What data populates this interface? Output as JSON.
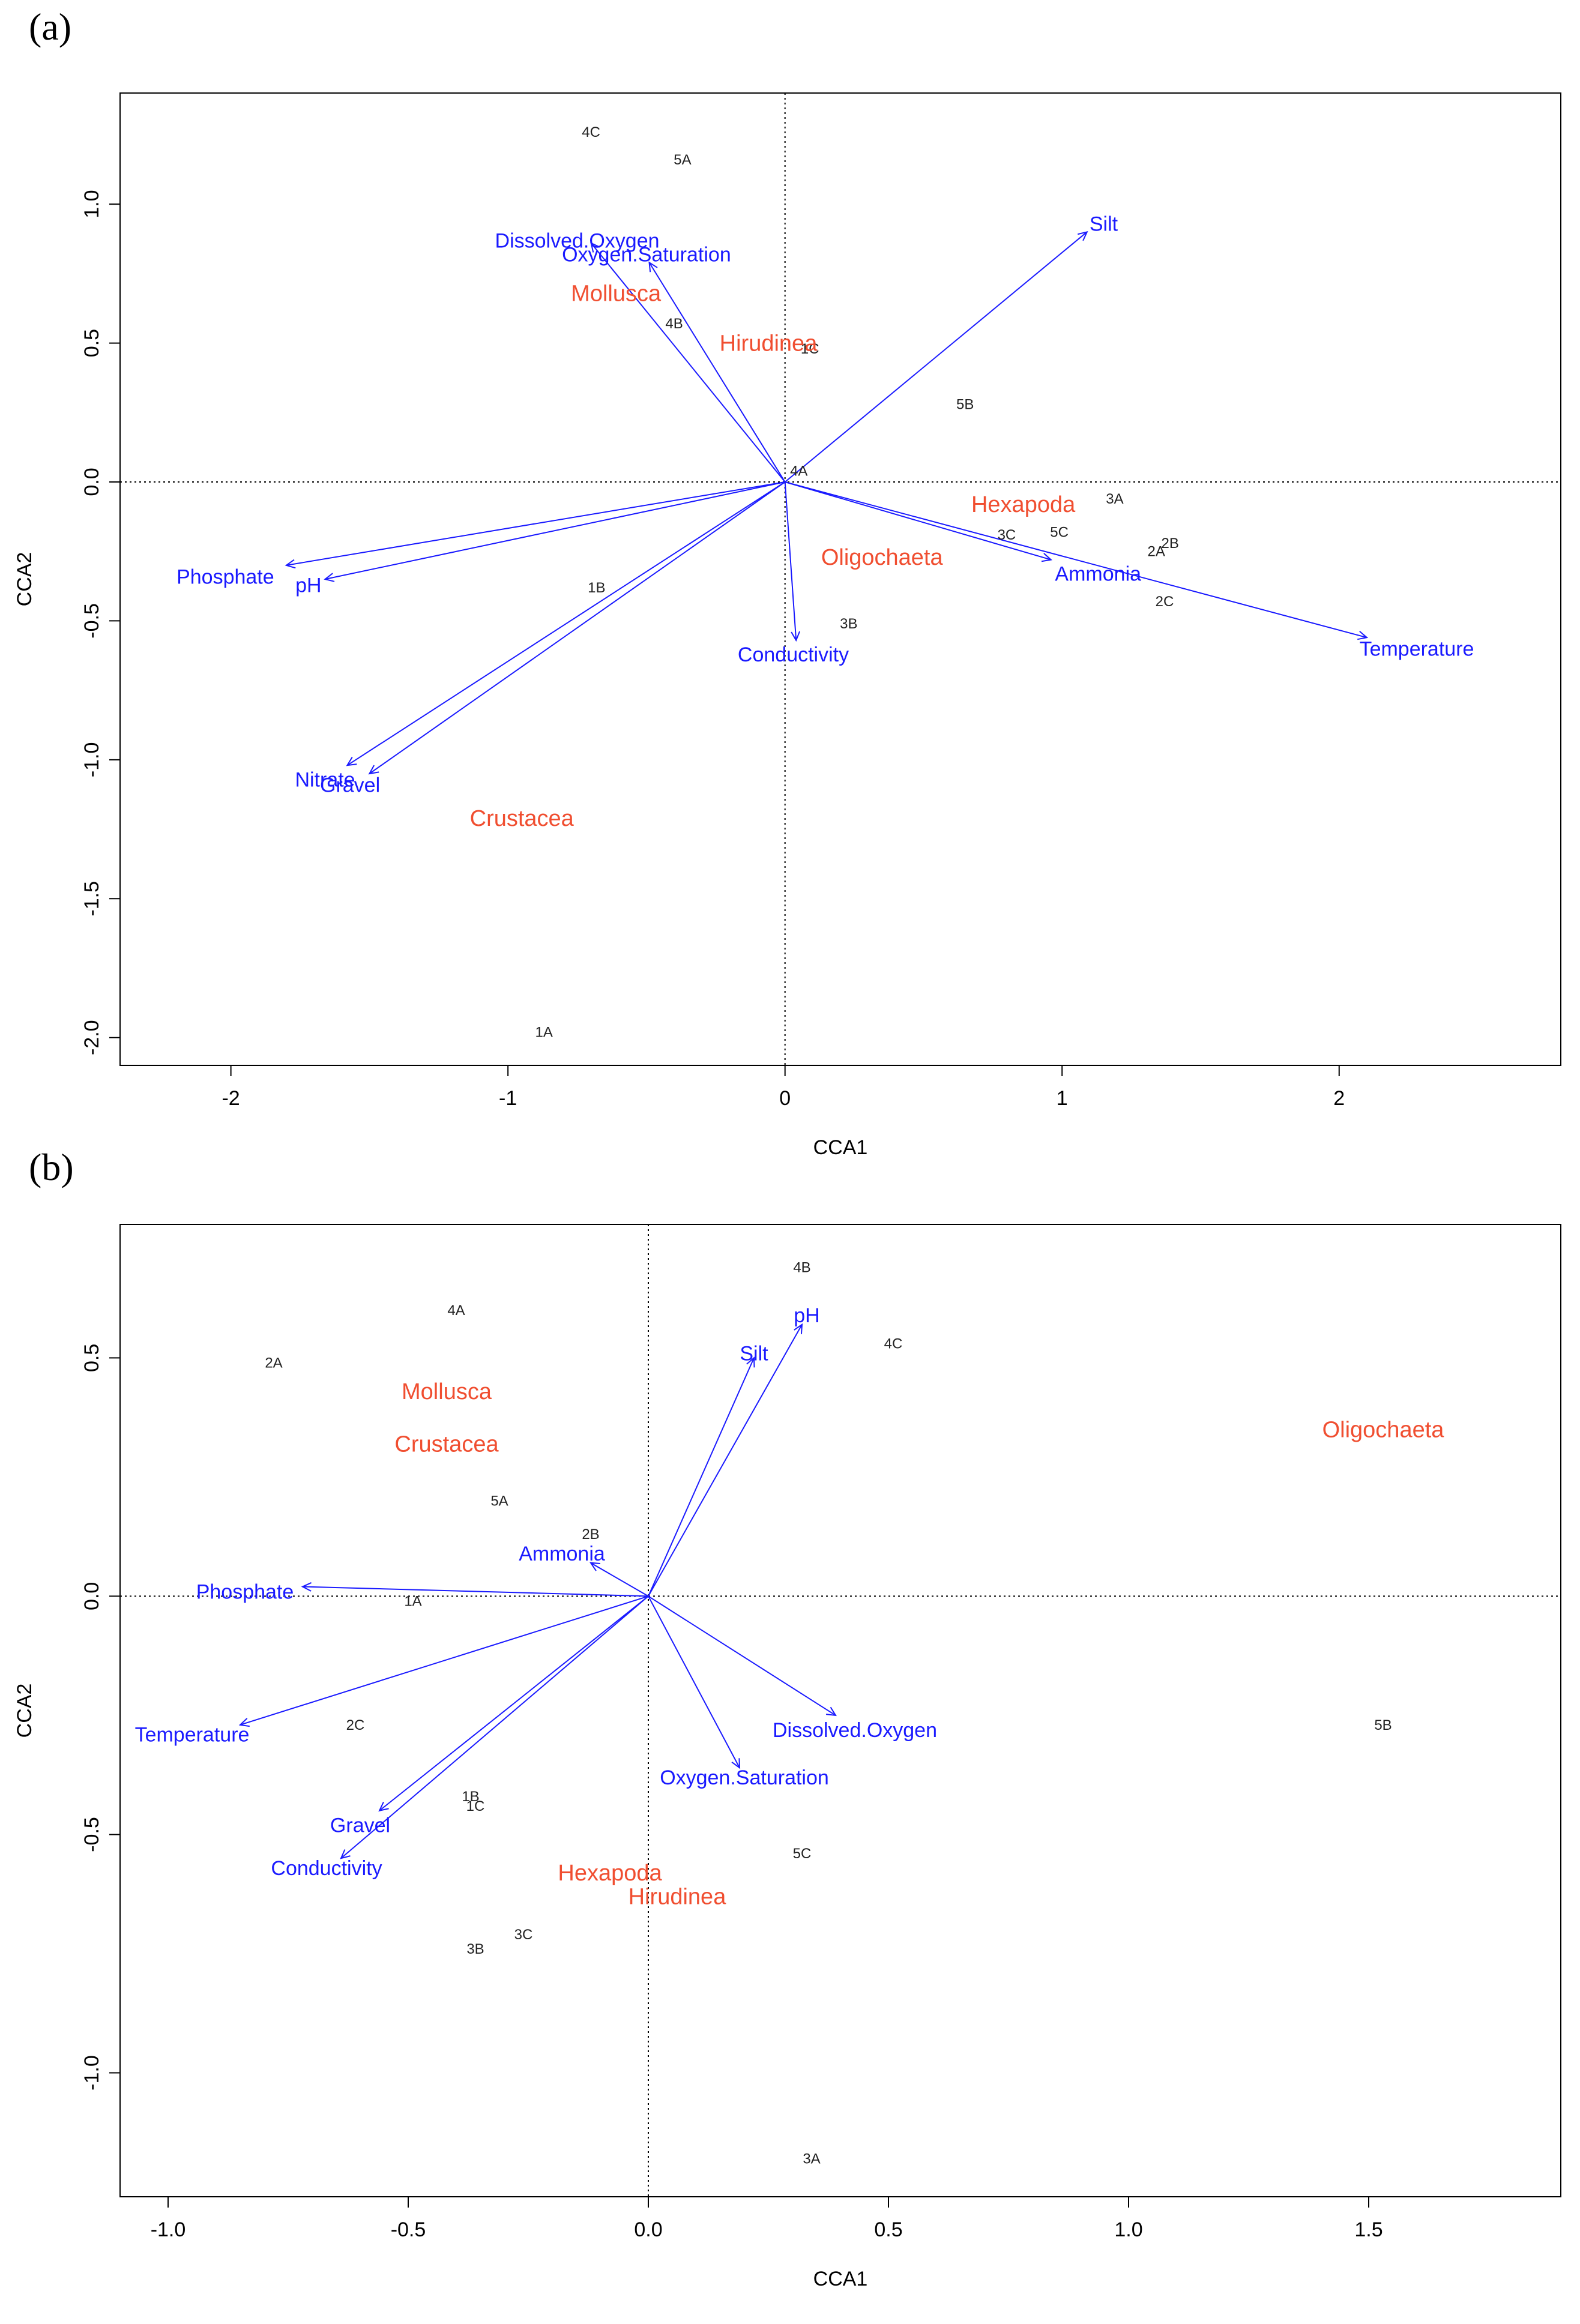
{
  "chart_data": [
    {
      "type": "scatter",
      "panel_label": "(a)",
      "xlabel": "CCA1",
      "ylabel": "CCA2",
      "xlim": [
        -2.4,
        2.8
      ],
      "ylim": [
        -2.1,
        1.4
      ],
      "xticks": [
        -2,
        -1,
        0,
        1,
        2
      ],
      "xtick_labels": [
        "-2",
        "-1",
        "0",
        "1",
        "2"
      ],
      "yticks": [
        -2.0,
        -1.5,
        -1.0,
        -0.5,
        0.0,
        0.5,
        1.0
      ],
      "ytick_labels": [
        "-2.0",
        "-1.5",
        "-1.0",
        "-0.5",
        "0.0",
        "0.5",
        "1.0"
      ],
      "sites": [
        {
          "label": "4C",
          "x": -0.7,
          "y": 1.26
        },
        {
          "label": "5A",
          "x": -0.37,
          "y": 1.16
        },
        {
          "label": "4B",
          "x": -0.4,
          "y": 0.57
        },
        {
          "label": "1C",
          "x": 0.09,
          "y": 0.48
        },
        {
          "label": "5B",
          "x": 0.65,
          "y": 0.28
        },
        {
          "label": "4A",
          "x": 0.05,
          "y": 0.04
        },
        {
          "label": "3A",
          "x": 1.19,
          "y": -0.06
        },
        {
          "label": "5C",
          "x": 0.99,
          "y": -0.18
        },
        {
          "label": "3C",
          "x": 0.8,
          "y": -0.19
        },
        {
          "label": "2B",
          "x": 1.39,
          "y": -0.22
        },
        {
          "label": "2A",
          "x": 1.34,
          "y": -0.25
        },
        {
          "label": "2C",
          "x": 1.37,
          "y": -0.43
        },
        {
          "label": "1B",
          "x": -0.68,
          "y": -0.38
        },
        {
          "label": "3B",
          "x": 0.23,
          "y": -0.51
        },
        {
          "label": "1A",
          "x": -0.87,
          "y": -1.98
        }
      ],
      "env_vectors": [
        {
          "name": "Silt",
          "x": 1.09,
          "y": 0.9,
          "lx": 1.15,
          "ly": 0.93
        },
        {
          "name": "Dissolved.Oxygen",
          "x": -0.7,
          "y": 0.86,
          "lx": -0.75,
          "ly": 0.87
        },
        {
          "name": "Oxygen.Saturation",
          "x": -0.49,
          "y": 0.79,
          "lx": -0.5,
          "ly": 0.82
        },
        {
          "name": "Phosphate",
          "x": -1.8,
          "y": -0.3,
          "lx": -2.02,
          "ly": -0.34
        },
        {
          "name": "pH",
          "x": -1.66,
          "y": -0.35,
          "lx": -1.72,
          "ly": -0.37
        },
        {
          "name": "Nitrate",
          "x": -1.58,
          "y": -1.02,
          "lx": -1.66,
          "ly": -1.07
        },
        {
          "name": "Gravel",
          "x": -1.5,
          "y": -1.05,
          "lx": -1.57,
          "ly": -1.09
        },
        {
          "name": "Conductivity",
          "x": 0.04,
          "y": -0.57,
          "lx": 0.03,
          "ly": -0.62
        },
        {
          "name": "Ammonia",
          "x": 0.96,
          "y": -0.28,
          "lx": 1.13,
          "ly": -0.33
        },
        {
          "name": "Temperature",
          "x": 2.1,
          "y": -0.56,
          "lx": 2.28,
          "ly": -0.6
        }
      ],
      "taxa": [
        {
          "name": "Mollusca",
          "x": -0.61,
          "y": 0.68
        },
        {
          "name": "Hirudinea",
          "x": -0.06,
          "y": 0.5
        },
        {
          "name": "Hexapoda",
          "x": 0.86,
          "y": -0.08
        },
        {
          "name": "Oligochaeta",
          "x": 0.35,
          "y": -0.27
        },
        {
          "name": "Crustacea",
          "x": -0.95,
          "y": -1.21
        }
      ]
    },
    {
      "type": "scatter",
      "panel_label": "(b)",
      "xlabel": "CCA1",
      "ylabel": "CCA2",
      "xlim": [
        -1.1,
        1.9
      ],
      "ylim": [
        -1.26,
        0.78
      ],
      "xticks": [
        -1.0,
        -0.5,
        0.0,
        0.5,
        1.0,
        1.5
      ],
      "xtick_labels": [
        "-1.0",
        "-0.5",
        "0.0",
        "0.5",
        "1.0",
        "1.5"
      ],
      "yticks": [
        -1.0,
        -0.5,
        0.0,
        0.5
      ],
      "ytick_labels": [
        "-1.0",
        "-0.5",
        "0.0",
        "0.5"
      ],
      "sites": [
        {
          "label": "4B",
          "x": 0.32,
          "y": 0.69
        },
        {
          "label": "4A",
          "x": -0.4,
          "y": 0.6
        },
        {
          "label": "4C",
          "x": 0.51,
          "y": 0.53
        },
        {
          "label": "2A",
          "x": -0.78,
          "y": 0.49
        },
        {
          "label": "5A",
          "x": -0.31,
          "y": 0.2
        },
        {
          "label": "2B",
          "x": -0.12,
          "y": 0.13
        },
        {
          "label": "1A",
          "x": -0.49,
          "y": -0.01
        },
        {
          "label": "2C",
          "x": -0.61,
          "y": -0.27
        },
        {
          "label": "5B",
          "x": 1.53,
          "y": -0.27
        },
        {
          "label": "1B",
          "x": -0.37,
          "y": -0.42
        },
        {
          "label": "1C",
          "x": -0.36,
          "y": -0.44
        },
        {
          "label": "5C",
          "x": 0.32,
          "y": -0.54
        },
        {
          "label": "3C",
          "x": -0.26,
          "y": -0.71
        },
        {
          "label": "3B",
          "x": -0.36,
          "y": -0.74
        },
        {
          "label": "3A",
          "x": 0.34,
          "y": -1.18
        }
      ],
      "env_vectors": [
        {
          "name": "pH",
          "x": 0.32,
          "y": 0.57,
          "lx": 0.33,
          "ly": 0.59
        },
        {
          "name": "Silt",
          "x": 0.22,
          "y": 0.5,
          "lx": 0.22,
          "ly": 0.51
        },
        {
          "name": "Ammonia",
          "x": -0.12,
          "y": 0.07,
          "lx": -0.18,
          "ly": 0.09
        },
        {
          "name": "Phosphate",
          "x": -0.72,
          "y": 0.02,
          "lx": -0.84,
          "ly": 0.01
        },
        {
          "name": "Temperature",
          "x": -0.85,
          "y": -0.27,
          "lx": -0.95,
          "ly": -0.29
        },
        {
          "name": "Dissolved.Oxygen",
          "x": 0.39,
          "y": -0.25,
          "lx": 0.43,
          "ly": -0.28
        },
        {
          "name": "Oxygen.Saturation",
          "x": 0.19,
          "y": -0.36,
          "lx": 0.2,
          "ly": -0.38
        },
        {
          "name": "Gravel",
          "x": -0.56,
          "y": -0.45,
          "lx": -0.6,
          "ly": -0.48
        },
        {
          "name": "Conductivity",
          "x": -0.64,
          "y": -0.55,
          "lx": -0.67,
          "ly": -0.57
        }
      ],
      "taxa": [
        {
          "name": "Mollusca",
          "x": -0.42,
          "y": 0.43
        },
        {
          "name": "Crustacea",
          "x": -0.42,
          "y": 0.32
        },
        {
          "name": "Oligochaeta",
          "x": 1.53,
          "y": 0.35
        },
        {
          "name": "Hexapoda",
          "x": -0.08,
          "y": -0.58
        },
        {
          "name": "Hirudinea",
          "x": 0.06,
          "y": -0.63
        }
      ]
    }
  ],
  "colors": {
    "env": "#1a1aff",
    "taxon": "#f04e30",
    "site": "#222222",
    "axis": "#000000"
  }
}
